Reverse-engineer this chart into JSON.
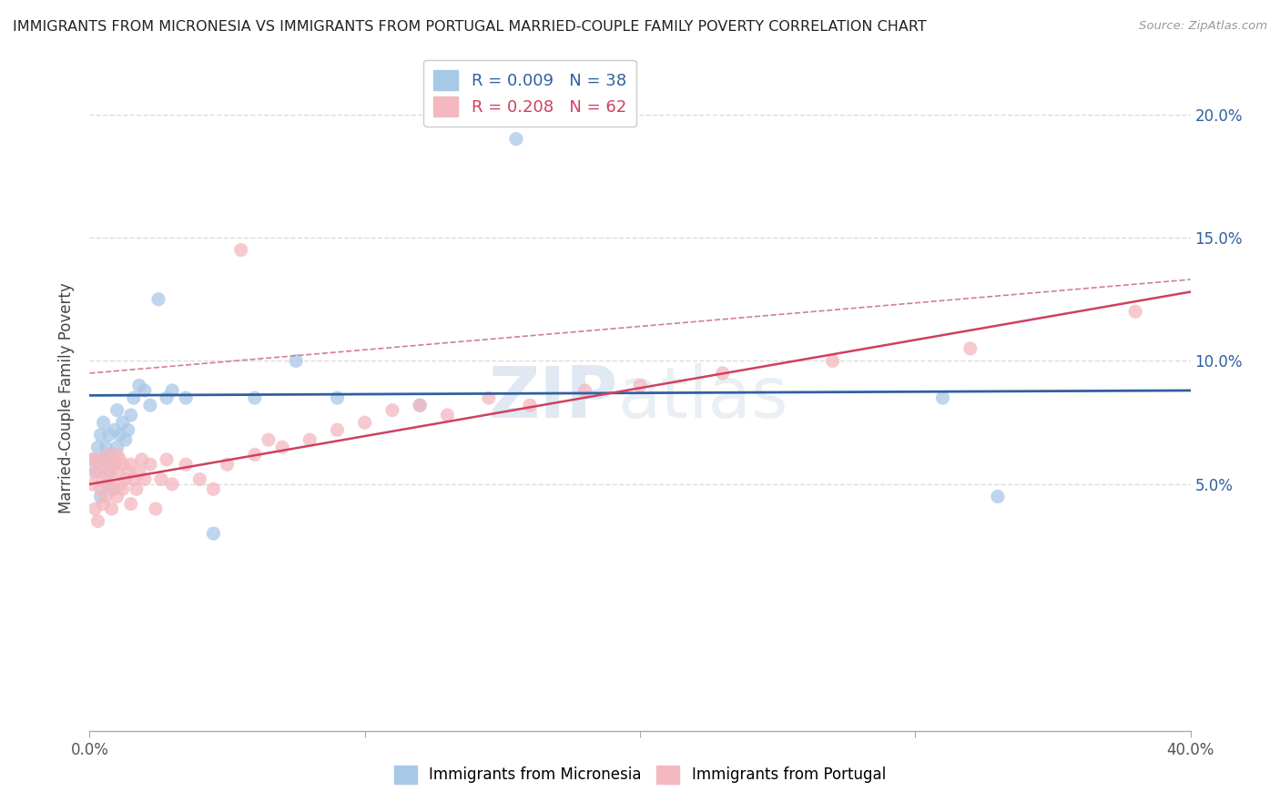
{
  "title": "IMMIGRANTS FROM MICRONESIA VS IMMIGRANTS FROM PORTUGAL MARRIED-COUPLE FAMILY POVERTY CORRELATION CHART",
  "source": "Source: ZipAtlas.com",
  "ylabel": "Married-Couple Family Poverty",
  "series1_label": "Immigrants from Micronesia",
  "series2_label": "Immigrants from Portugal",
  "R1": 0.009,
  "N1": 38,
  "R2": 0.208,
  "N2": 62,
  "color1": "#a8c8e8",
  "color2": "#f4b8c0",
  "trendline1_color": "#3060a0",
  "trendline2_color": "#d04060",
  "trendline2_upper_color": "#d08090",
  "xlim": [
    0.0,
    0.4
  ],
  "ylim": [
    -0.05,
    0.22
  ],
  "xticks": [
    0.0,
    0.1,
    0.2,
    0.3,
    0.4
  ],
  "yticks_right": [
    0.05,
    0.1,
    0.15,
    0.2
  ],
  "ytick_labels_right": [
    "5.0%",
    "10.0%",
    "15.0%",
    "20.0%"
  ],
  "xtick_labels": [
    "0.0%",
    "",
    "",
    "",
    "40.0%"
  ],
  "watermark_zip": "ZIP",
  "watermark_atlas": "atlas",
  "background_color": "#ffffff",
  "series1_x": [
    0.001,
    0.002,
    0.003,
    0.004,
    0.004,
    0.005,
    0.005,
    0.006,
    0.006,
    0.007,
    0.007,
    0.008,
    0.008,
    0.009,
    0.009,
    0.01,
    0.01,
    0.011,
    0.012,
    0.013,
    0.014,
    0.015,
    0.016,
    0.018,
    0.02,
    0.022,
    0.025,
    0.028,
    0.03,
    0.035,
    0.045,
    0.06,
    0.075,
    0.09,
    0.12,
    0.155,
    0.31,
    0.33
  ],
  "series1_y": [
    0.06,
    0.055,
    0.065,
    0.045,
    0.07,
    0.06,
    0.075,
    0.05,
    0.065,
    0.055,
    0.07,
    0.048,
    0.062,
    0.058,
    0.072,
    0.065,
    0.08,
    0.07,
    0.075,
    0.068,
    0.072,
    0.078,
    0.085,
    0.09,
    0.088,
    0.082,
    0.125,
    0.085,
    0.088,
    0.085,
    0.03,
    0.085,
    0.1,
    0.085,
    0.082,
    0.19,
    0.085,
    0.045
  ],
  "series2_x": [
    0.001,
    0.001,
    0.002,
    0.002,
    0.003,
    0.003,
    0.004,
    0.004,
    0.005,
    0.005,
    0.005,
    0.006,
    0.006,
    0.007,
    0.007,
    0.008,
    0.008,
    0.009,
    0.009,
    0.01,
    0.01,
    0.01,
    0.011,
    0.011,
    0.012,
    0.012,
    0.013,
    0.014,
    0.015,
    0.015,
    0.016,
    0.017,
    0.018,
    0.019,
    0.02,
    0.022,
    0.024,
    0.026,
    0.028,
    0.03,
    0.035,
    0.04,
    0.045,
    0.05,
    0.055,
    0.06,
    0.065,
    0.07,
    0.08,
    0.09,
    0.1,
    0.11,
    0.12,
    0.13,
    0.145,
    0.16,
    0.18,
    0.2,
    0.23,
    0.27,
    0.32,
    0.38
  ],
  "series2_y": [
    0.05,
    0.06,
    0.04,
    0.055,
    0.035,
    0.06,
    0.048,
    0.055,
    0.042,
    0.052,
    0.06,
    0.045,
    0.058,
    0.05,
    0.062,
    0.04,
    0.055,
    0.048,
    0.058,
    0.045,
    0.055,
    0.062,
    0.05,
    0.06,
    0.048,
    0.058,
    0.052,
    0.055,
    0.042,
    0.058,
    0.052,
    0.048,
    0.055,
    0.06,
    0.052,
    0.058,
    0.04,
    0.052,
    0.06,
    0.05,
    0.058,
    0.052,
    0.048,
    0.058,
    0.145,
    0.062,
    0.068,
    0.065,
    0.068,
    0.072,
    0.075,
    0.08,
    0.082,
    0.078,
    0.085,
    0.082,
    0.088,
    0.09,
    0.095,
    0.1,
    0.105,
    0.12
  ],
  "gridline_color": "#dddddd",
  "gridline_style": "--",
  "trendline1_intercept": 0.086,
  "trendline1_slope": 0.005,
  "trendline2_intercept": 0.05,
  "trendline2_slope": 0.195,
  "trendline2_upper_intercept": 0.095,
  "trendline2_upper_slope": 0.095
}
